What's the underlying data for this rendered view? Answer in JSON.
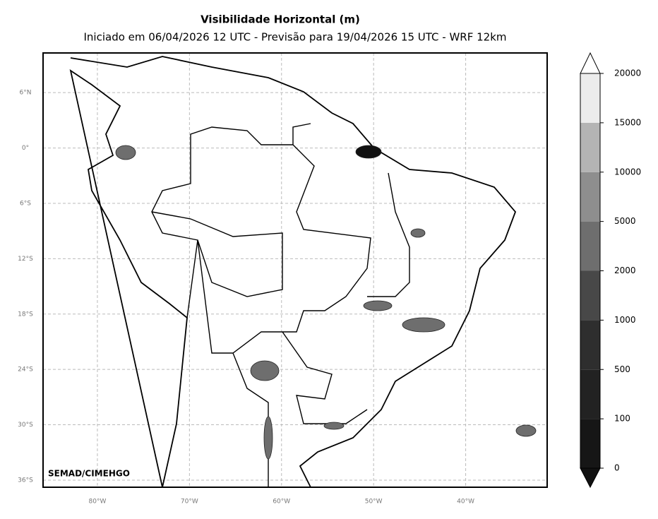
{
  "map": {
    "title": "Visibilidade Horizontal (m)",
    "subtitle": "Iniciado em 06/04/2026 12 UTC - Previsão para 19/04/2026 15 UTC - WRF 12km",
    "credit": "SEMAD/CIMEHGO",
    "xlim": [
      -85.9,
      -31.15
    ],
    "ylim": [
      -36.77,
      10.3
    ],
    "grid": true,
    "lon_ticks": [
      {
        "value": -80,
        "label": "80°W"
      },
      {
        "value": -70,
        "label": "70°W"
      },
      {
        "value": -60,
        "label": "60°W"
      },
      {
        "value": -50,
        "label": "50°W"
      },
      {
        "value": -40,
        "label": "40°W"
      }
    ],
    "lat_ticks": [
      {
        "value": 6,
        "label": "6°N"
      },
      {
        "value": 0,
        "label": "0°"
      },
      {
        "value": -6,
        "label": "6°S"
      },
      {
        "value": -12,
        "label": "12°S"
      },
      {
        "value": -18,
        "label": "18°S"
      },
      {
        "value": -24,
        "label": "24°S"
      },
      {
        "value": -30,
        "label": "30°S"
      },
      {
        "value": -36,
        "label": "36°S"
      }
    ],
    "colorbar": {
      "levels": [
        0,
        100,
        500,
        1000,
        2000,
        5000,
        10000,
        15000,
        20000
      ],
      "colors": [
        "#161616",
        "#222222",
        "#2e2e2e",
        "#484848",
        "#6e6e6e",
        "#8e8e8e",
        "#b4b4b4",
        "#ececec"
      ],
      "extend_low_color": "#111111",
      "extend_high_color": "#ffffff"
    }
  }
}
